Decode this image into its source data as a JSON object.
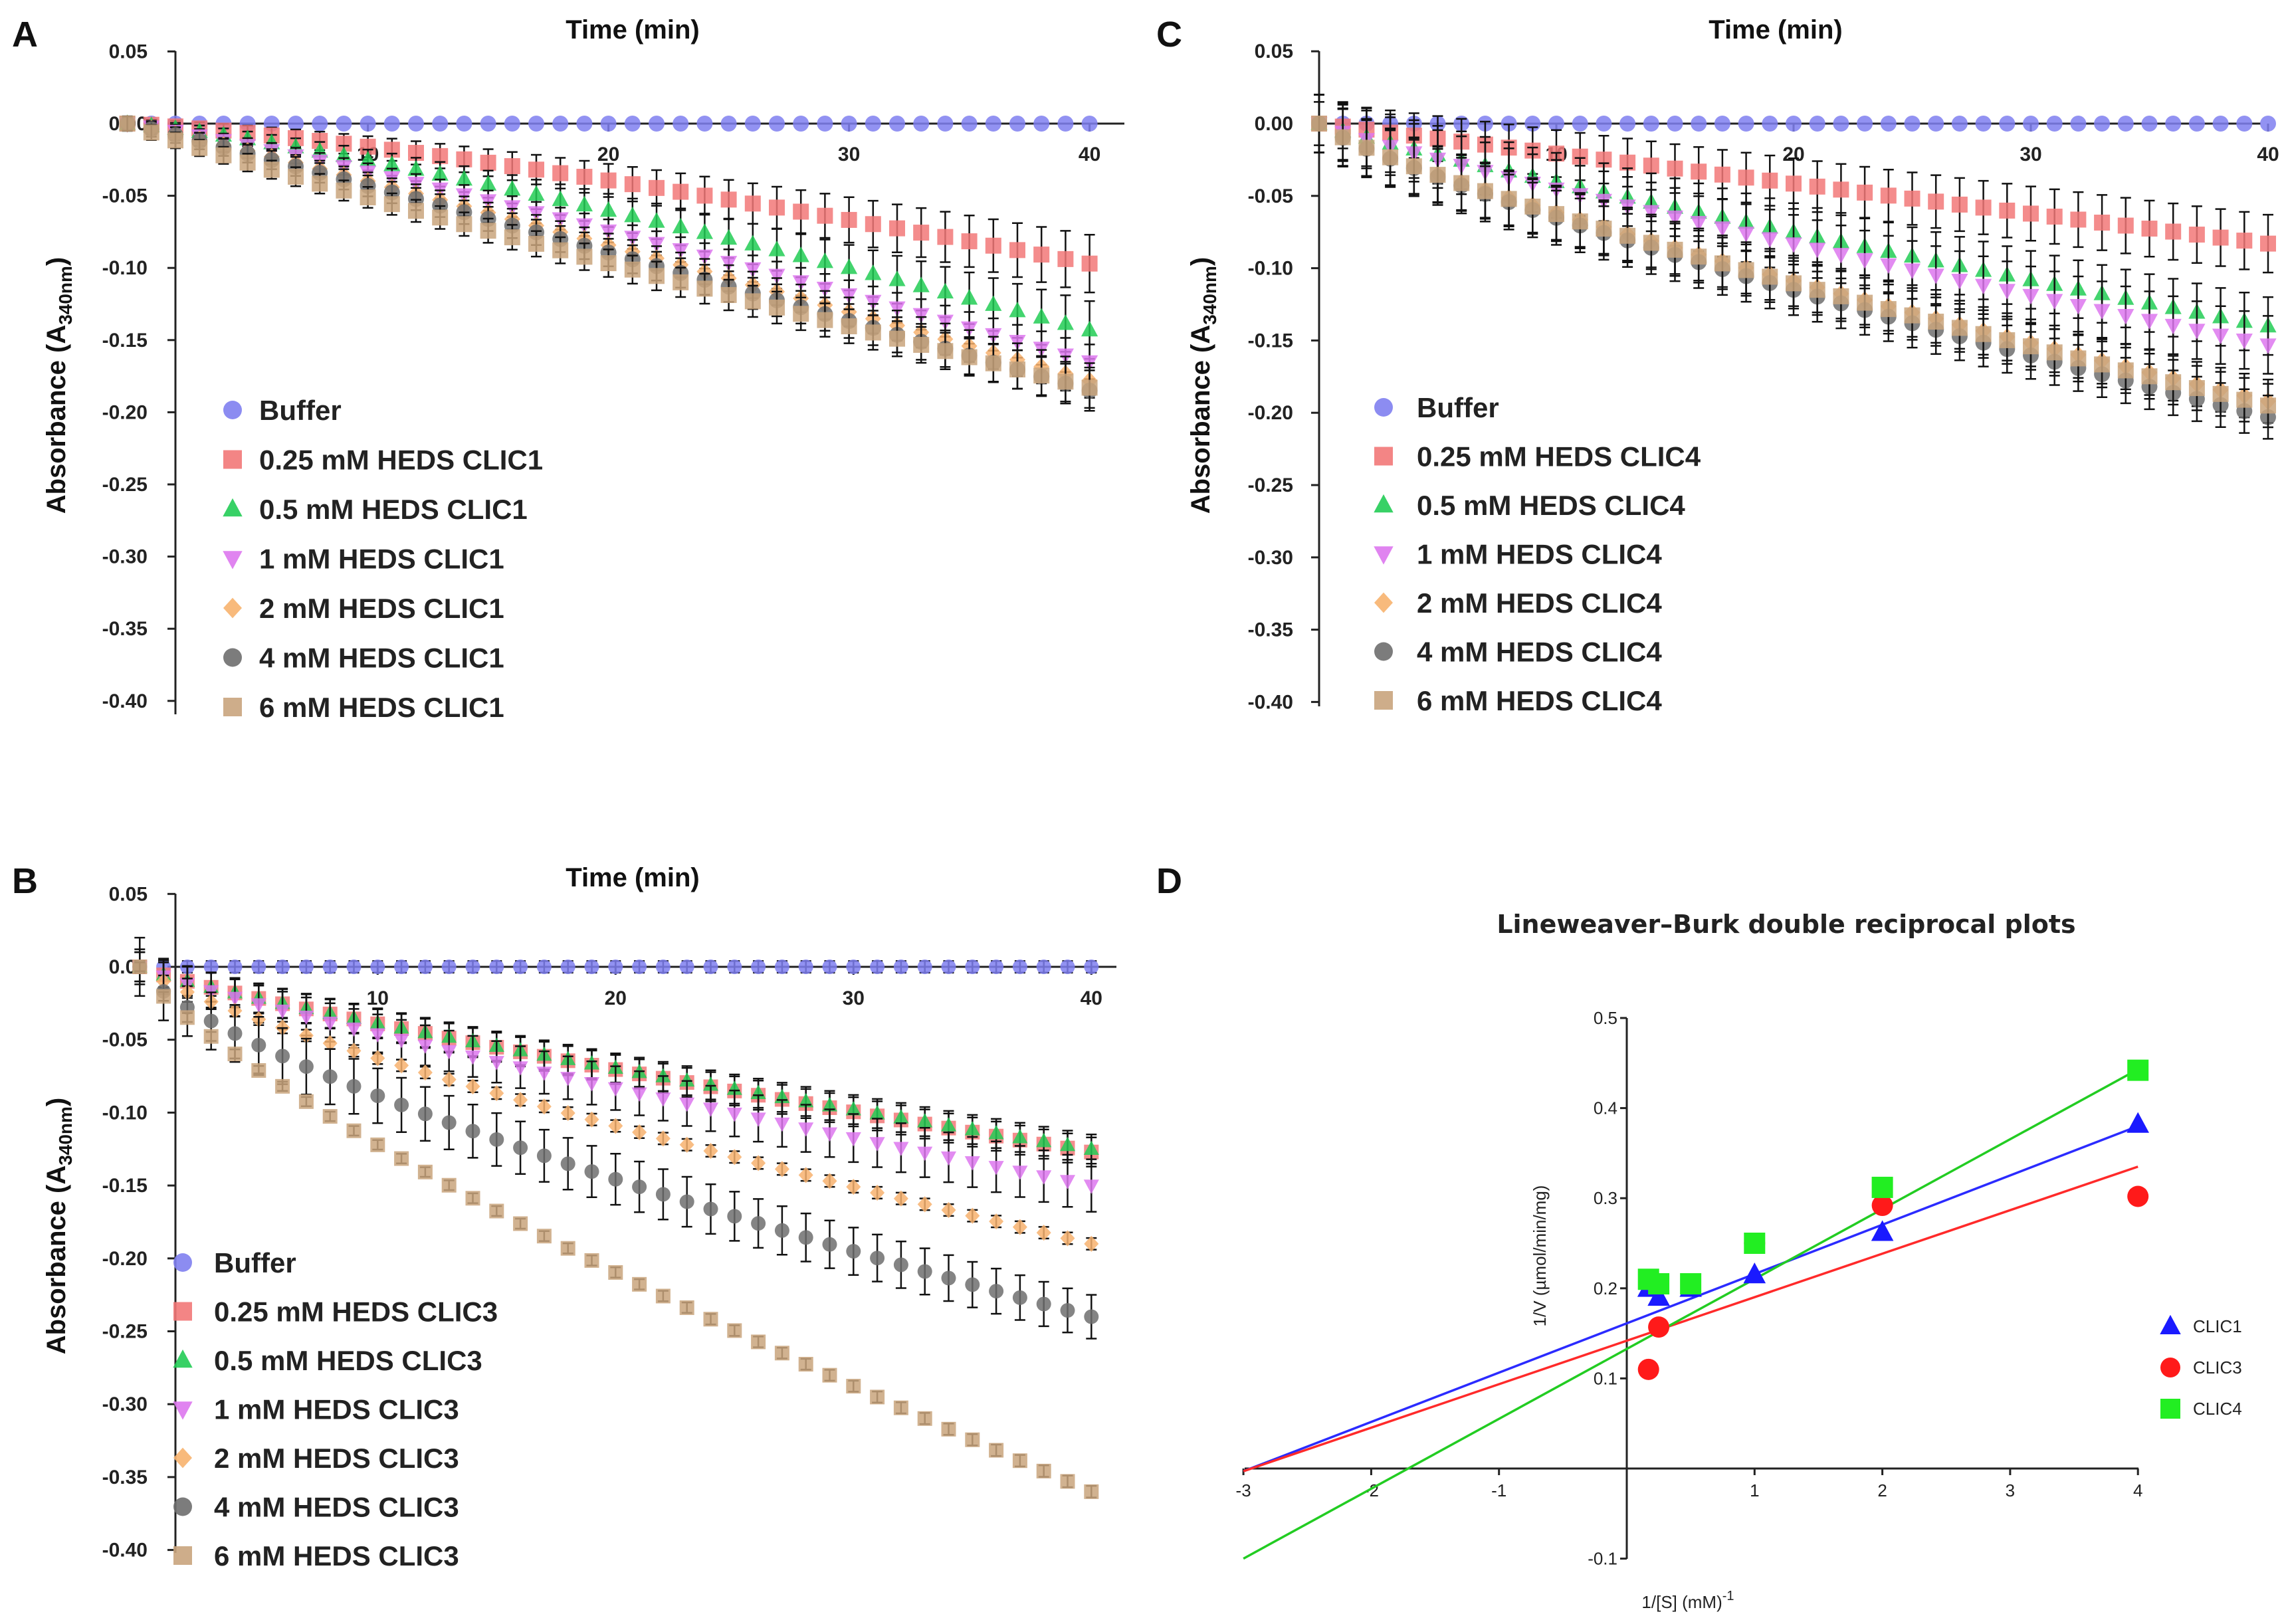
{
  "chart_data": [
    {
      "panel": "A",
      "type": "scatter",
      "x_axis_title": "Time (min)",
      "y_axis_title_main": "Absorbance (A",
      "y_axis_title_sub": "340nm",
      "y_axis_title_end": ")",
      "xlim": [
        0,
        40
      ],
      "ylim": [
        -0.4,
        0.05
      ],
      "x_ticks": [
        "10",
        "20",
        "30",
        "40"
      ],
      "y_ticks": [
        "0.05",
        "0.00",
        "-0.05",
        "-0.10",
        "-0.15",
        "-0.20",
        "-0.25",
        "-0.30",
        "-0.35",
        "-0.40"
      ],
      "x_range": [
        0,
        40
      ],
      "n_points": 41,
      "series": [
        {
          "name": "Buffer",
          "marker": "circle",
          "color": "#7f7ff0",
          "end": 0.0,
          "k": 1.0,
          "err": 0.0,
          "err_end": 0.0
        },
        {
          "name": "0.25 mM HEDS CLIC1",
          "marker": "square",
          "color": "#f27878",
          "end": -0.097,
          "k": 1.3,
          "err": 0.003,
          "err_end": 0.02
        },
        {
          "name": "0.5 mM HEDS CLIC1",
          "marker": "triangle-up",
          "color": "#22cc55",
          "end": -0.143,
          "k": 1.25,
          "err": 0.003,
          "err_end": 0.02
        },
        {
          "name": "1 mM HEDS CLIC1",
          "marker": "triangle-down",
          "color": "#dd77ee",
          "end": -0.165,
          "k": 1.15,
          "err": 0.004,
          "err_end": 0.012
        },
        {
          "name": "2 mM HEDS CLIC1",
          "marker": "diamond",
          "color": "#f7b26e",
          "end": -0.178,
          "k": 1.08,
          "err": 0.004,
          "err_end": 0.012
        },
        {
          "name": "4 mM HEDS CLIC1",
          "marker": "circle",
          "color": "#6e6e6e",
          "end": -0.185,
          "k": 1.05,
          "err": 0.005,
          "err_end": 0.014
        },
        {
          "name": "6 mM HEDS CLIC1",
          "marker": "square",
          "color": "#c9a47d",
          "end": -0.183,
          "k": 0.92,
          "err": 0.005,
          "err_end": 0.014
        }
      ]
    },
    {
      "panel": "B",
      "type": "scatter",
      "x_axis_title": "Time (min)",
      "y_axis_title_main": "Absorbance (A",
      "y_axis_title_sub": "340nm",
      "y_axis_title_end": ")",
      "xlim": [
        0,
        40
      ],
      "ylim": [
        -0.4,
        0.05
      ],
      "x_ticks": [
        "10",
        "20",
        "30",
        "40"
      ],
      "y_ticks": [
        "0.05",
        "0.00",
        "-0.05",
        "-0.10",
        "-0.15",
        "-0.20",
        "-0.25",
        "-0.30",
        "-0.35",
        "-0.40"
      ],
      "x_range": [
        0,
        40
      ],
      "n_points": 41,
      "series": [
        {
          "name": "Buffer",
          "marker": "circle",
          "color": "#7f7ff0",
          "end": 0.0,
          "k": 1.0,
          "err": 0.004,
          "err_end": 0.004
        },
        {
          "name": "0.25 mM HEDS CLIC3",
          "marker": "square",
          "color": "#f27878",
          "end": -0.127,
          "k": 0.85,
          "err": 0.01,
          "err_end": 0.01
        },
        {
          "name": "0.5 mM HEDS CLIC3",
          "marker": "triangle-up",
          "color": "#22cc55",
          "end": -0.125,
          "k": 0.85,
          "err": 0.01,
          "err_end": 0.01
        },
        {
          "name": "1 mM HEDS CLIC3",
          "marker": "triangle-down",
          "color": "#dd77ee",
          "end": -0.15,
          "k": 0.85,
          "err": 0.012,
          "err_end": 0.018
        },
        {
          "name": "2 mM HEDS CLIC3",
          "marker": "diamond",
          "color": "#f7b26e",
          "end": -0.19,
          "k": 0.8,
          "err": 0.004,
          "err_end": 0.004
        },
        {
          "name": "4 mM HEDS CLIC3",
          "marker": "circle",
          "color": "#6e6e6e",
          "end": -0.24,
          "k": 0.72,
          "err": 0.02,
          "err_end": 0.015
        },
        {
          "name": "6 mM HEDS CLIC3",
          "marker": "square",
          "color": "#c9a47d",
          "end": -0.36,
          "k": 0.78,
          "err": 0.003,
          "err_end": 0.004
        }
      ]
    },
    {
      "panel": "C",
      "type": "scatter",
      "x_axis_title": "Time (min)",
      "y_axis_title_main": "Absorbance (A",
      "y_axis_title_sub": "340nm",
      "y_axis_title_end": ")",
      "xlim": [
        0,
        40
      ],
      "ylim": [
        -0.4,
        0.05
      ],
      "x_ticks": [
        "10",
        "20",
        "30",
        "40"
      ],
      "y_ticks": [
        "0.05",
        "0.00",
        "-0.05",
        "-0.10",
        "-0.15",
        "-0.20",
        "-0.25",
        "-0.30",
        "-0.35",
        "-0.40"
      ],
      "x_range": [
        0,
        40
      ],
      "n_points": 41,
      "series": [
        {
          "name": "Buffer",
          "marker": "circle",
          "color": "#7f7ff0",
          "end": 0.0,
          "k": 1.0,
          "err": 0.0,
          "err_end": 0.0
        },
        {
          "name": "0.25 mM HEDS CLIC4",
          "marker": "square",
          "color": "#f27878",
          "end": -0.083,
          "k": 1.0,
          "err": 0.015,
          "err_end": 0.02
        },
        {
          "name": "0.5 mM HEDS CLIC4",
          "marker": "triangle-up",
          "color": "#22cc55",
          "end": -0.14,
          "k": 0.9,
          "err": 0.02,
          "err_end": 0.02
        },
        {
          "name": "1 mM HEDS CLIC4",
          "marker": "triangle-down",
          "color": "#dd77ee",
          "end": -0.153,
          "k": 0.88,
          "err": 0.02,
          "err_end": 0.02
        },
        {
          "name": "2 mM HEDS CLIC4",
          "marker": "diamond",
          "color": "#f7b26e",
          "end": -0.192,
          "k": 0.82,
          "err": 0.02,
          "err_end": 0.015
        },
        {
          "name": "4 mM HEDS CLIC4",
          "marker": "circle",
          "color": "#6e6e6e",
          "end": -0.203,
          "k": 0.82,
          "err": 0.02,
          "err_end": 0.015
        },
        {
          "name": "6 mM HEDS CLIC4",
          "marker": "square",
          "color": "#c9a47d",
          "end": -0.195,
          "k": 0.82,
          "err": 0.02,
          "err_end": 0.015
        }
      ]
    },
    {
      "panel": "D",
      "type": "scatter",
      "title": "Lineweaver–Burk double reciprocal plots",
      "xlabel": "1/[S] (mM)",
      "xlabel_sup": "-1",
      "ylabel": "1/V (µmol/min/mg)",
      "xlim": [
        -3,
        4
      ],
      "ylim": [
        -0.1,
        0.5
      ],
      "x_ticks": [
        "-3",
        "-2",
        "-1",
        "1",
        "2",
        "3",
        "4"
      ],
      "y_ticks": [
        "-0.1",
        "0.1",
        "0.2",
        "0.3",
        "0.4",
        "0.5"
      ],
      "series": [
        {
          "name": "CLIC1",
          "marker": "triangle-up",
          "color": "#1a1aff",
          "line_color": "#2b2bff",
          "x": [
            0.17,
            0.25,
            0.5,
            1,
            2,
            4
          ],
          "y": [
            0.2,
            0.19,
            0.2,
            0.215,
            0.262,
            0.382
          ],
          "fit": [
            [
              -3,
              -0.003
            ],
            [
              4,
              0.38
            ]
          ]
        },
        {
          "name": "CLIC3",
          "marker": "circle",
          "color": "#ff1a1a",
          "line_color": "#ff2a2a",
          "x": [
            0.17,
            0.25,
            1,
            2,
            4
          ],
          "y": [
            0.11,
            0.157,
            0.25,
            0.292,
            0.302
          ],
          "fit": [
            [
              -3,
              -0.003
            ],
            [
              4,
              0.335
            ]
          ]
        },
        {
          "name": "CLIC4",
          "marker": "square",
          "color": "#22ee22",
          "line_color": "#22cc22",
          "x": [
            0.17,
            0.25,
            0.5,
            1,
            2,
            4
          ],
          "y": [
            0.21,
            0.205,
            0.205,
            0.25,
            0.312,
            0.442
          ],
          "fit": [
            [
              -3,
              -0.1
            ],
            [
              4,
              0.443
            ]
          ]
        }
      ]
    }
  ]
}
